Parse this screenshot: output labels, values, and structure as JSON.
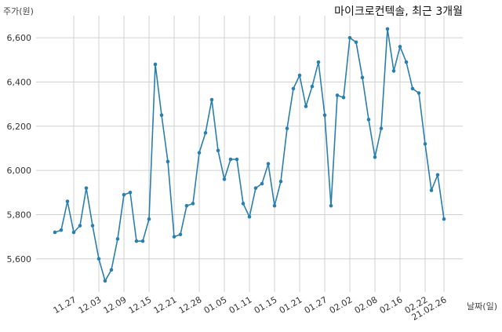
{
  "chart_data": {
    "type": "line",
    "title": "마이크로컨텍솔, 최근 3개월",
    "ylabel": "주가(원)",
    "xlabel": "날짜(일)",
    "ylim": [
      5450,
      6700
    ],
    "yticks": [
      5600,
      5800,
      6000,
      6200,
      6400,
      6600
    ],
    "ytick_labels": [
      "5,600",
      "5,800",
      "6,000",
      "6,200",
      "6,400",
      "6,600"
    ],
    "xtick_labels": [
      "11.27",
      "12.03",
      "12.09",
      "12.15",
      "12.21",
      "12.28",
      "01.05",
      "01.11",
      "01.15",
      "01.21",
      "01.27",
      "02.02",
      "02.08",
      "02.16",
      "02.22",
      "21.02.26"
    ],
    "xtick_index": [
      3,
      7,
      11,
      15,
      19,
      23,
      27,
      31,
      35,
      39,
      43,
      47,
      51,
      55,
      59,
      62
    ],
    "grid": true,
    "line_color": "#2a7fad",
    "series": [
      {
        "values": [
          5720,
          5730,
          5860,
          5720,
          5750,
          5920,
          5750,
          5600,
          5500,
          5550,
          5690,
          5890,
          5900,
          5680,
          5680,
          5780,
          6480,
          6250,
          6040,
          5700,
          5710,
          5840,
          5850,
          6080,
          6170,
          6320,
          6090,
          5960,
          6050,
          6050,
          5850,
          5790,
          5920,
          5940,
          6030,
          5840,
          5950,
          6190,
          6370,
          6430,
          6290,
          6380,
          6490,
          6250,
          5840,
          6340,
          6330,
          6600,
          6580,
          6420,
          6230,
          6060,
          6190,
          6640,
          6450,
          6560,
          6490,
          6370,
          6350,
          6120,
          5910,
          5980,
          5780
        ]
      }
    ]
  }
}
